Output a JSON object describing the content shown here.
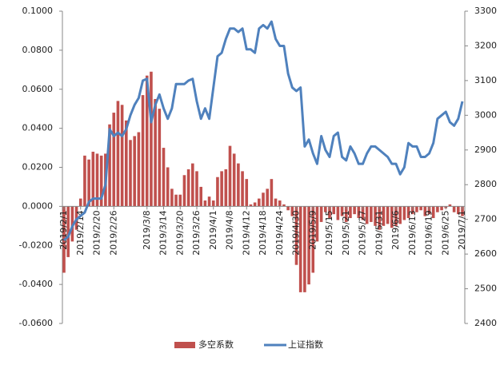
{
  "chart_data": {
    "type": "combo",
    "categories": [
      "2019/2/1",
      null,
      null,
      null,
      "2019/2/14",
      null,
      null,
      null,
      "2019/2/20",
      null,
      null,
      null,
      "2019/2/26",
      null,
      null,
      null,
      null,
      null,
      null,
      null,
      "2019/3/8",
      null,
      null,
      null,
      "2019/3/14",
      null,
      null,
      null,
      "2019/3/20",
      null,
      null,
      null,
      "2019/3/26",
      null,
      null,
      null,
      "2019/4/1",
      null,
      null,
      null,
      "2019/4/8",
      null,
      null,
      null,
      "2019/4/12",
      null,
      null,
      null,
      "2019/4/18",
      null,
      null,
      null,
      "2019/4/24",
      null,
      null,
      null,
      "2019/4/30",
      null,
      null,
      null,
      "2019/5/9",
      null,
      null,
      null,
      "2019/5/15",
      null,
      null,
      null,
      "2019/5/21",
      null,
      null,
      null,
      "2019/5/27",
      null,
      null,
      null,
      "2019/5/31",
      null,
      null,
      null,
      "2019/6/6",
      null,
      null,
      null,
      "2019/6/13",
      null,
      null,
      null,
      "2019/6/19",
      null,
      null,
      null,
      "2019/6/25",
      null,
      null,
      null,
      "2019/7/1"
    ],
    "series": [
      {
        "name": "多空系数",
        "type": "bar",
        "axis": "y",
        "color": "#c0504d",
        "values": [
          -0.034,
          -0.026,
          -0.018,
          -0.012,
          0.004,
          0.026,
          0.024,
          0.028,
          0.027,
          0.026,
          0.027,
          0.042,
          0.048,
          0.054,
          0.052,
          0.044,
          0.034,
          0.036,
          0.038,
          0.057,
          0.067,
          0.069,
          0.055,
          0.05,
          0.03,
          0.02,
          0.009,
          0.006,
          0.006,
          0.016,
          0.019,
          0.022,
          0.018,
          0.01,
          0.003,
          0.005,
          0.003,
          0.015,
          0.018,
          0.019,
          0.031,
          0.027,
          0.022,
          0.018,
          0.014,
          0.001,
          0.002,
          0.004,
          0.007,
          0.009,
          0.014,
          0.004,
          0.003,
          0.001,
          -0.002,
          -0.005,
          -0.03,
          -0.044,
          -0.044,
          -0.04,
          -0.034,
          -0.018,
          -0.008,
          -0.003,
          -0.006,
          -0.004,
          -0.007,
          -0.005,
          -0.008,
          -0.006,
          -0.004,
          -0.006,
          -0.007,
          -0.009,
          -0.008,
          -0.01,
          -0.012,
          -0.01,
          -0.009,
          -0.011,
          -0.01,
          -0.009,
          -0.007,
          -0.006,
          -0.004,
          -0.003,
          -0.002,
          -0.005,
          -0.004,
          -0.006,
          -0.003,
          -0.002,
          -0.001,
          0.001,
          -0.003,
          -0.004,
          -0.005
        ]
      },
      {
        "name": "上证指数",
        "type": "line",
        "axis": "y2",
        "color": "#4f81bd",
        "values": [
          2640,
          2650,
          2680,
          2700,
          2710,
          2720,
          2750,
          2760,
          2760,
          2760,
          2800,
          2960,
          2940,
          2950,
          2940,
          2960,
          3000,
          3030,
          3050,
          3100,
          3105,
          2980,
          3030,
          3060,
          3020,
          2990,
          3020,
          3090,
          3090,
          3090,
          3100,
          3105,
          3040,
          2990,
          3020,
          2990,
          3080,
          3170,
          3180,
          3220,
          3250,
          3250,
          3240,
          3250,
          3190,
          3190,
          3180,
          3250,
          3260,
          3250,
          3270,
          3220,
          3200,
          3200,
          3120,
          3080,
          3070,
          3080,
          2910,
          2930,
          2890,
          2860,
          2940,
          2900,
          2880,
          2940,
          2950,
          2880,
          2870,
          2910,
          2890,
          2860,
          2860,
          2890,
          2910,
          2910,
          2900,
          2890,
          2880,
          2860,
          2860,
          2830,
          2850,
          2920,
          2910,
          2910,
          2880,
          2880,
          2890,
          2920,
          2990,
          3000,
          3010,
          2980,
          2970,
          2990,
          3040
        ]
      }
    ],
    "ylim": [
      -0.06,
      0.1
    ],
    "yticks": [
      {
        "value": -0.06,
        "label": "-0.0600"
      },
      {
        "value": -0.04,
        "label": "-0.0400"
      },
      {
        "value": -0.02,
        "label": "-0.0200"
      },
      {
        "value": 0,
        "label": "0.0000"
      },
      {
        "value": 0.02,
        "label": "0.0200"
      },
      {
        "value": 0.04,
        "label": "0.0400"
      },
      {
        "value": 0.06,
        "label": "0.0600"
      },
      {
        "value": 0.08,
        "label": "0.0800"
      },
      {
        "value": 0.1,
        "label": "0.1000"
      }
    ],
    "y2lim": [
      2400,
      3300
    ],
    "y2ticks": [
      2400,
      2500,
      2600,
      2700,
      2800,
      2900,
      3000,
      3100,
      3200,
      3300
    ],
    "legend": "bottom"
  }
}
